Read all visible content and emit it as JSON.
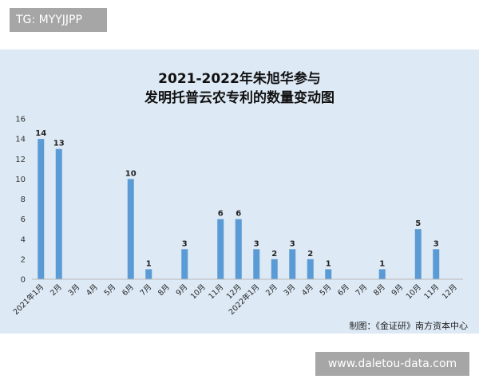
{
  "watermark_top": "TG: MYYJJPP",
  "watermark_bottom": "www.daletou-data.com",
  "source_note": "制图：《金证研》南方资本中心",
  "colors": {
    "bar": "#5b9bd5",
    "panel": "#dde9f5"
  },
  "chart_data": {
    "type": "bar",
    "title": [
      "2021-2022年朱旭华参与",
      "发明托普云农专利的数量变动图"
    ],
    "categories": [
      "2021年1月",
      "2月",
      "3月",
      "4月",
      "5月",
      "6月",
      "7月",
      "8月",
      "9月",
      "10月",
      "11月",
      "12月",
      "2022年1月",
      "2月",
      "3月",
      "4月",
      "5月",
      "6月",
      "7月",
      "8月",
      "9月",
      "10月",
      "11月",
      "12月"
    ],
    "values": [
      14,
      13,
      0,
      0,
      0,
      10,
      1,
      0,
      3,
      0,
      6,
      6,
      3,
      2,
      3,
      2,
      1,
      0,
      0,
      1,
      0,
      5,
      3,
      0
    ],
    "ylim": [
      0,
      16
    ],
    "yticks": [
      0,
      2,
      4,
      6,
      8,
      10,
      12,
      14,
      16
    ],
    "grid": false,
    "legend": "none"
  }
}
